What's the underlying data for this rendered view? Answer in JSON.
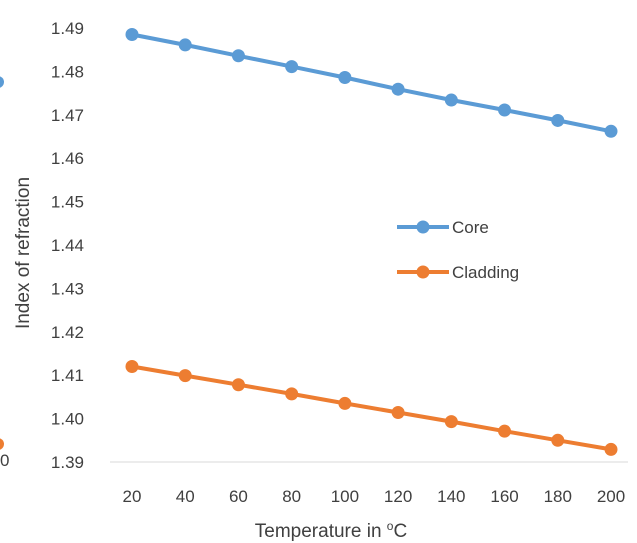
{
  "chart_data": {
    "type": "line",
    "xlabel": "Temperature in ",
    "xlabel_sup": "o",
    "xlabel_unit": "C",
    "ylabel": "Index of refraction",
    "categories": [
      "20",
      "40",
      "60",
      "80",
      "100",
      "120",
      "140",
      "160",
      "180",
      "200"
    ],
    "ylim": [
      1.39,
      1.49
    ],
    "yticks": [
      "1.39",
      "1.40",
      "1.41",
      "1.42",
      "1.43",
      "1.44",
      "1.45",
      "1.46",
      "1.47",
      "1.48",
      "1.49"
    ],
    "grid": false,
    "legend_position": "center-right",
    "series": [
      {
        "name": "Core",
        "color": "#5B9BD5",
        "values": [
          1.4885,
          1.4861,
          1.4836,
          1.4811,
          1.4786,
          1.4759,
          1.4734,
          1.4711,
          1.4687,
          1.4662
        ]
      },
      {
        "name": "Cladding",
        "color": "#ED7D31",
        "values": [
          1.412,
          1.4099,
          1.4078,
          1.4057,
          1.4035,
          1.4014,
          1.3993,
          1.3971,
          1.395,
          1.3929
        ]
      }
    ],
    "left_edge_fragments": {
      "tick_fragment": "0"
    }
  }
}
